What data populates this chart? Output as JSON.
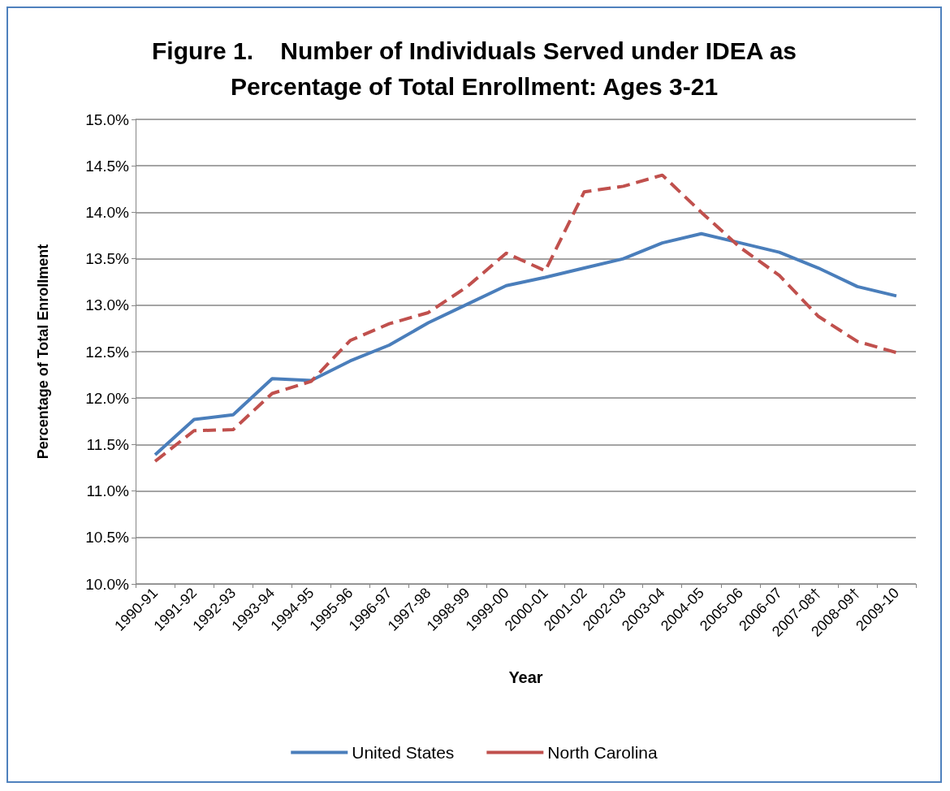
{
  "chart_data": {
    "type": "line",
    "title": "Figure 1.    Number of Individuals Served under IDEA as\nPercentage of Total Enrollment: Ages 3-21",
    "xlabel": "Year",
    "ylabel": "Percentage of Total Enrollment",
    "categories": [
      "1990-91",
      "1991-92",
      "1992-93",
      "1993-94",
      "1994-95",
      "1995-96",
      "1996-97",
      "1997-98",
      "1998-99",
      "1999-00",
      "2000-01",
      "2001-02",
      "2002-03",
      "2003-04",
      "2004-05",
      "2005-06",
      "2006-07",
      "2007-08†",
      "2008-09†",
      "2009-10"
    ],
    "series": [
      {
        "name": "United States",
        "color": "#4a7ebb",
        "line_style": "solid",
        "values": [
          11.39,
          11.77,
          11.82,
          12.21,
          12.19,
          12.4,
          12.57,
          12.81,
          13.01,
          13.21,
          13.3,
          13.4,
          13.5,
          13.67,
          13.77,
          13.67,
          13.57,
          13.4,
          13.2,
          13.1
        ]
      },
      {
        "name": "North Carolina",
        "color": "#c0504d",
        "line_style": "dashed",
        "values": [
          11.32,
          11.65,
          11.66,
          12.05,
          12.18,
          12.62,
          12.8,
          12.92,
          13.2,
          13.56,
          13.37,
          14.22,
          14.28,
          14.4,
          14.0,
          13.62,
          13.32,
          12.88,
          12.61,
          12.49
        ]
      }
    ],
    "ylim": [
      10,
      15
    ],
    "yticks": [
      {
        "value": 10,
        "label": "10.0%"
      },
      {
        "value": 10.5,
        "label": "10.5%"
      },
      {
        "value": 11,
        "label": "11.0%"
      },
      {
        "value": 11.5,
        "label": "11.5%"
      },
      {
        "value": 12,
        "label": "12.0%"
      },
      {
        "value": 12.5,
        "label": "12.5%"
      },
      {
        "value": 13,
        "label": "13.0%"
      },
      {
        "value": 13.5,
        "label": "13.5%"
      },
      {
        "value": 14,
        "label": "14.0%"
      },
      {
        "value": 14.5,
        "label": "14.5%"
      },
      {
        "value": 15,
        "label": "15.0%"
      }
    ],
    "grid": "y",
    "legend": "bottom",
    "marker": "none"
  }
}
